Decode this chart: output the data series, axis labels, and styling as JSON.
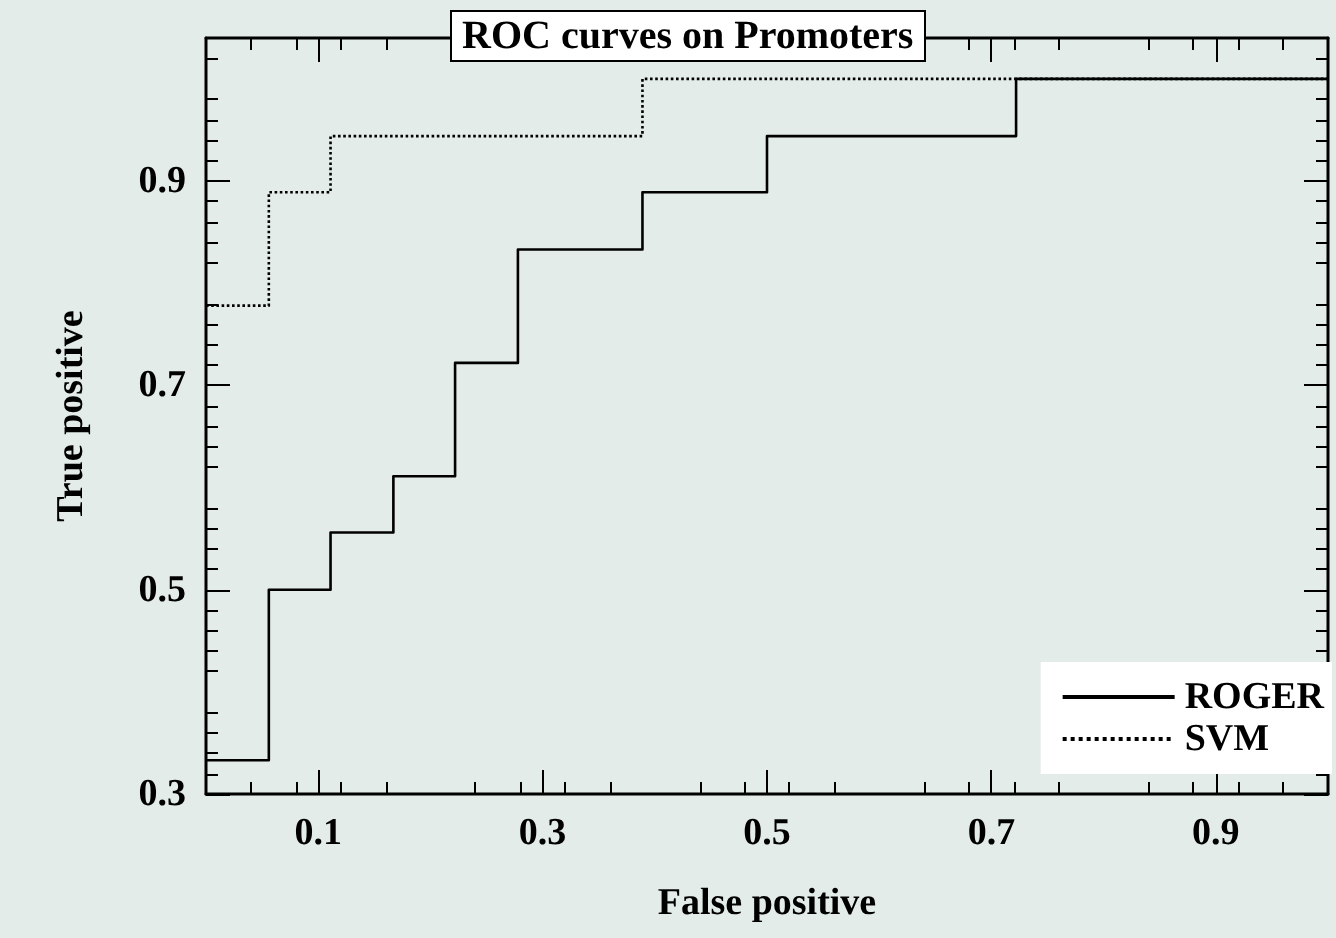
{
  "chart_data": {
    "type": "step",
    "title": "ROC curves on Promoters",
    "xlabel": "False positive",
    "ylabel": "True positive",
    "xlim": [
      0,
      1
    ],
    "xticks": [
      0.1,
      0.3,
      0.5,
      0.7,
      0.9
    ],
    "ylim": [
      0.3,
      1.04
    ],
    "yticks": [
      0.3,
      0.5,
      0.7,
      0.9
    ],
    "grid": false,
    "legend": "bottom right",
    "marker": "none",
    "series": [
      {
        "name": "ROGER",
        "color": "#000000",
        "line_style": "solid",
        "x": [
          0,
          0.056,
          0.111,
          0.167,
          0.222,
          0.278,
          0.389,
          0.5,
          0.722,
          1
        ],
        "values": [
          0.333,
          0.5,
          0.556,
          0.611,
          0.722,
          0.833,
          0.889,
          0.944,
          1,
          1
        ]
      },
      {
        "name": "SVM",
        "color": "#000000",
        "line_style": "dotted",
        "x": [
          0,
          0.056,
          0.111,
          0.389,
          1
        ],
        "values": [
          0.778,
          0.889,
          0.944,
          1,
          1
        ]
      }
    ]
  }
}
